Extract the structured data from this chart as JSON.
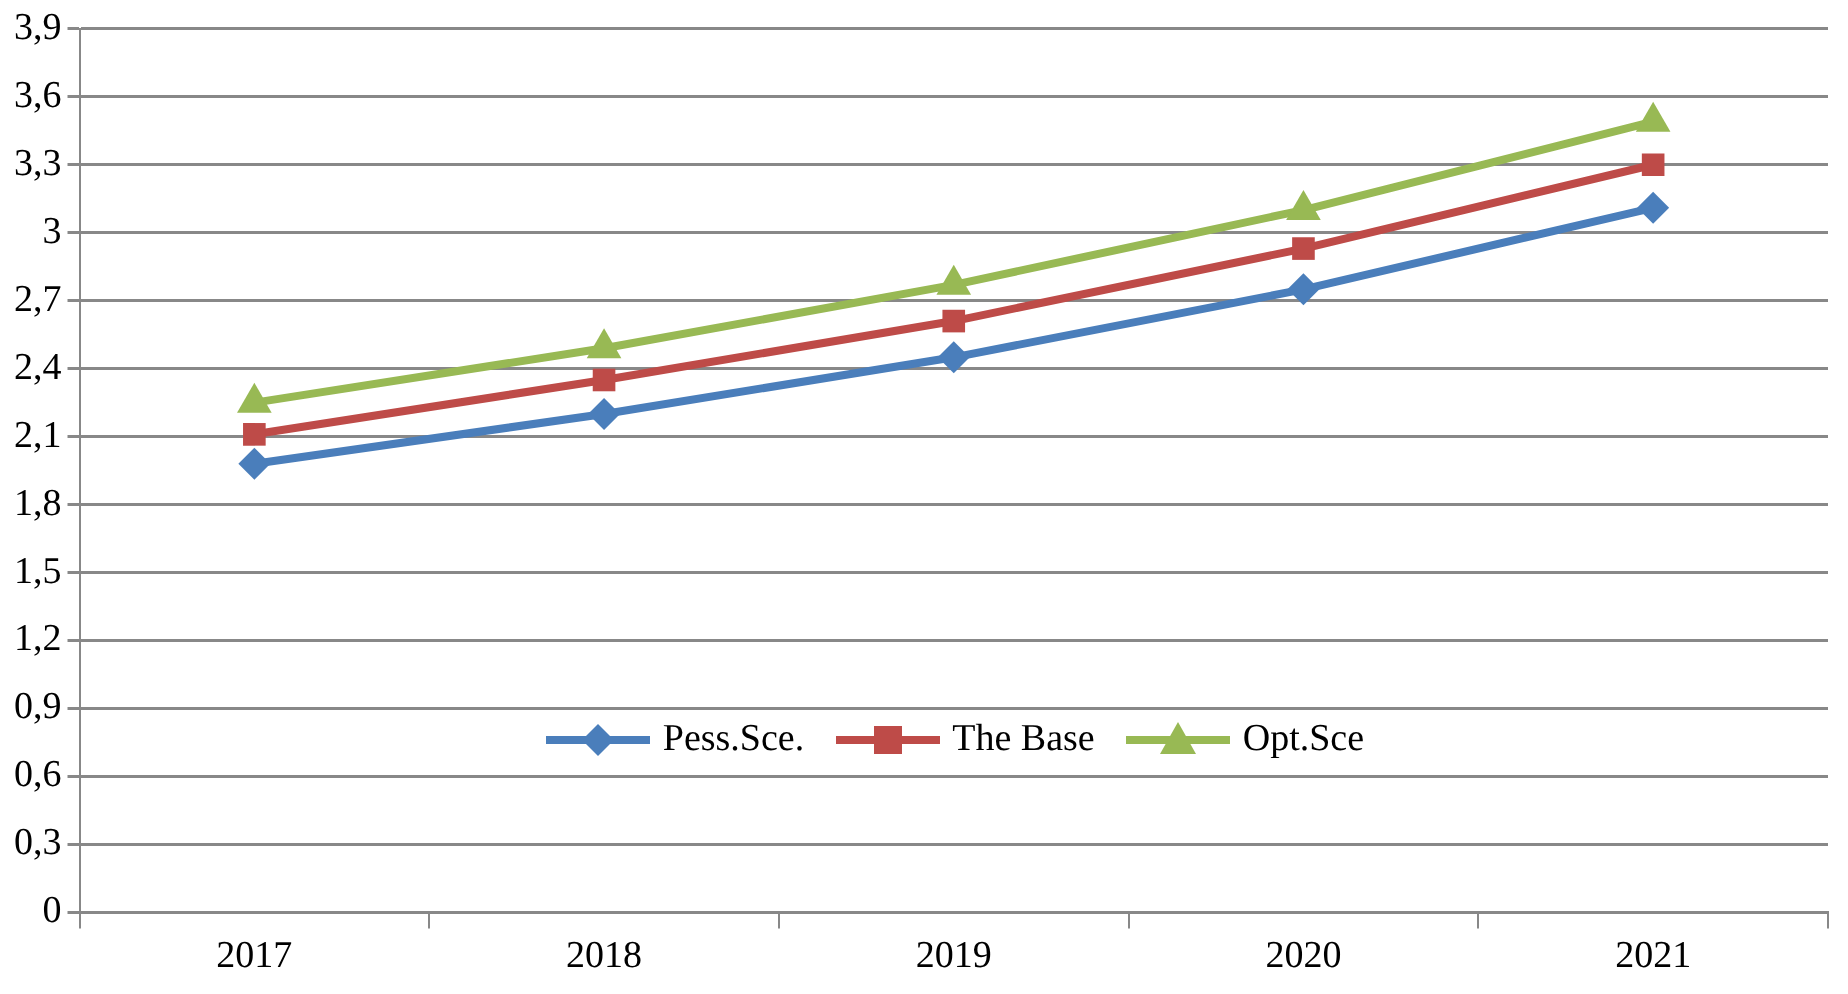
{
  "chart_data": {
    "type": "line",
    "categories": [
      "2017",
      "2018",
      "2019",
      "2020",
      "2021"
    ],
    "series": [
      {
        "name": "Pess.Sce.",
        "color": "#4a7ebb",
        "marker": "diamond",
        "values": [
          1.98,
          2.2,
          2.45,
          2.75,
          3.11
        ]
      },
      {
        "name": "The Base",
        "color": "#be4b48",
        "marker": "square",
        "values": [
          2.11,
          2.35,
          2.61,
          2.93,
          3.3
        ]
      },
      {
        "name": "Opt.Sce",
        "color": "#98b954",
        "marker": "triangle",
        "values": [
          2.25,
          2.49,
          2.77,
          3.1,
          3.49
        ]
      }
    ],
    "ylim": [
      0,
      3.9
    ],
    "yticks": [
      0,
      {
        "value": 0.3,
        "label": "0,3"
      },
      {
        "value": 0.6,
        "label": "0,6"
      },
      {
        "value": 0.9,
        "label": "0,9"
      },
      {
        "value": 1.2,
        "label": "1,2"
      },
      {
        "value": 1.5,
        "label": "1,5"
      },
      {
        "value": 1.8,
        "label": "1,8"
      },
      {
        "value": 2.1,
        "label": "2,1"
      },
      {
        "value": 2.4,
        "label": "2,4"
      },
      {
        "value": 2.7,
        "label": "2,7"
      },
      3,
      {
        "value": 3.3,
        "label": "3,3"
      },
      {
        "value": 3.6,
        "label": "3,6"
      },
      {
        "value": 3.9,
        "label": "3,9"
      }
    ],
    "grid": "y",
    "legend": "bottom",
    "line_style": "solid"
  }
}
